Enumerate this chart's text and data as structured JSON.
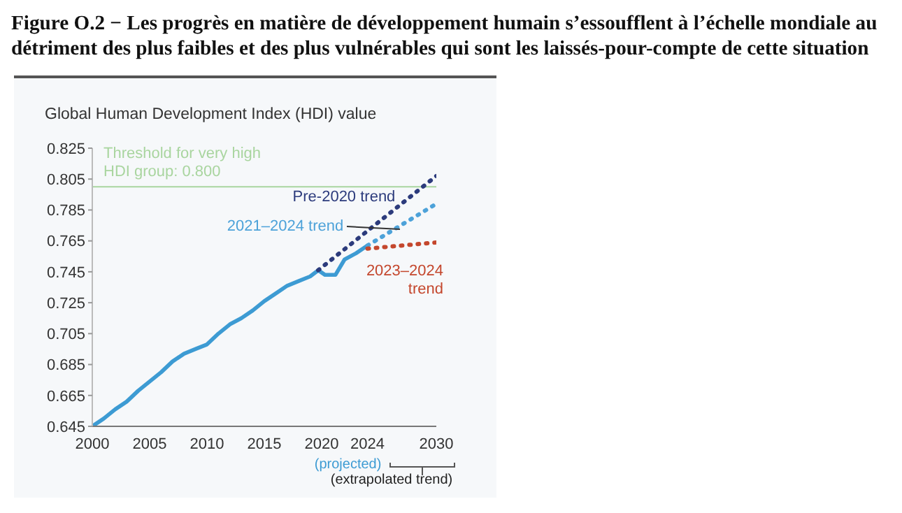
{
  "chart_data": {
    "type": "line",
    "title": "Figure O.2 − Les progrès en matière de développement humain s’essoufflent à l’échelle mondiale au détriment des plus faibles et des plus vulnérables qui sont les laissés-pour-compte de cette situation",
    "ylabel": "Global Human Development Index (HDI) value",
    "xlim": [
      2000,
      2030
    ],
    "xticks": [
      2000,
      2005,
      2010,
      2015,
      2020,
      2024,
      2030
    ],
    "ylim": [
      0.645,
      0.825
    ],
    "yticks": [
      0.645,
      0.665,
      0.685,
      0.705,
      0.725,
      0.745,
      0.765,
      0.785,
      0.805,
      0.825
    ],
    "grid": false,
    "marker": "none",
    "ref_lines": [
      {
        "axis": "y",
        "value": 0.8,
        "label": "Threshold for very high HDI group: 0.800",
        "color": "#a9d59f"
      }
    ],
    "annotations": [
      "(projected)",
      "(extrapolated trend)"
    ],
    "series": [
      {
        "color": "#3d9bd3",
        "line_style": "solid",
        "x": [
          2000,
          2001,
          2002,
          2003,
          2004,
          2005,
          2006,
          2007,
          2008,
          2009,
          2010,
          2011,
          2012,
          2013,
          2014,
          2015,
          2016,
          2017,
          2018,
          2019,
          2019.7,
          2020.3,
          2021.2,
          2022,
          2023,
          2024
        ],
        "values": [
          0.645,
          0.65,
          0.656,
          0.661,
          0.668,
          0.674,
          0.68,
          0.687,
          0.692,
          0.695,
          0.698,
          0.705,
          0.711,
          0.715,
          0.72,
          0.726,
          0.731,
          0.736,
          0.739,
          0.742,
          0.746,
          0.743,
          0.743,
          0.753,
          0.757,
          0.762
        ]
      },
      {
        "name": "Pre-2020 trend",
        "color": "#2c3b7c",
        "line_style": "dotted",
        "x": [
          2019.7,
          2030
        ],
        "values": [
          0.746,
          0.807
        ]
      },
      {
        "name": "2021–2024 trend",
        "color": "#4da2d9",
        "line_style": "dotted",
        "x": [
          2024,
          2030
        ],
        "values": [
          0.762,
          0.789
        ]
      },
      {
        "name": "2023–2024 trend",
        "color": "#c4472d",
        "line_style": "dotted",
        "x": [
          2024,
          2030
        ],
        "values": [
          0.76,
          0.764
        ]
      }
    ]
  }
}
